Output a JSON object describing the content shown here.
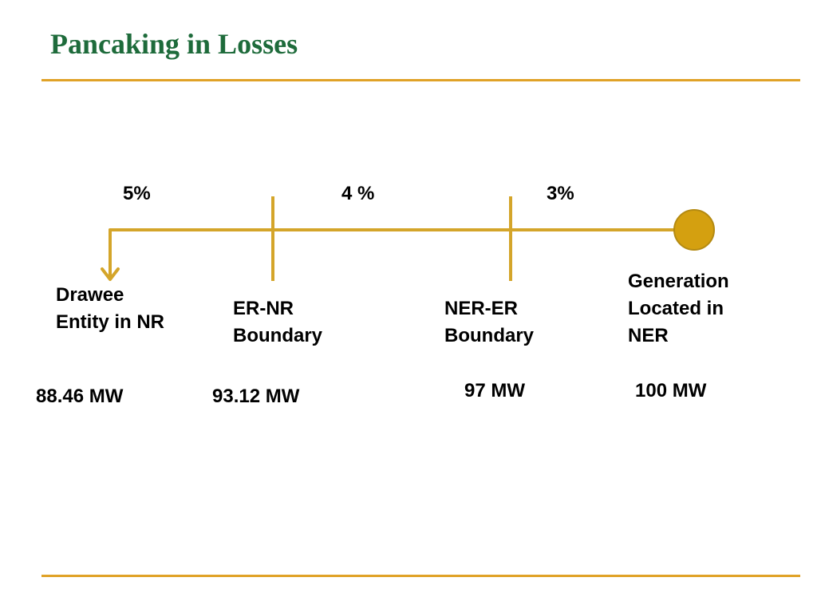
{
  "slide": {
    "title": "Pancaking in Losses"
  },
  "colors": {
    "title": "#1e6b3b",
    "rule": "#e0a227",
    "line": "#d4a52a",
    "node_fill": "#d4a010",
    "node_stroke": "#b48a12"
  },
  "losses": [
    {
      "label": "5%"
    },
    {
      "label": "4 %"
    },
    {
      "label": "3%"
    }
  ],
  "nodes": [
    {
      "name": "Drawee\nEntity in NR",
      "power": "88.46 MW"
    },
    {
      "name": "ER-NR\nBoundary",
      "power": "93.12 MW"
    },
    {
      "name": "NER-ER\nBoundary",
      "power": "97 MW"
    },
    {
      "name": "Generation\nLocated in\nNER",
      "power": "100 MW"
    }
  ]
}
